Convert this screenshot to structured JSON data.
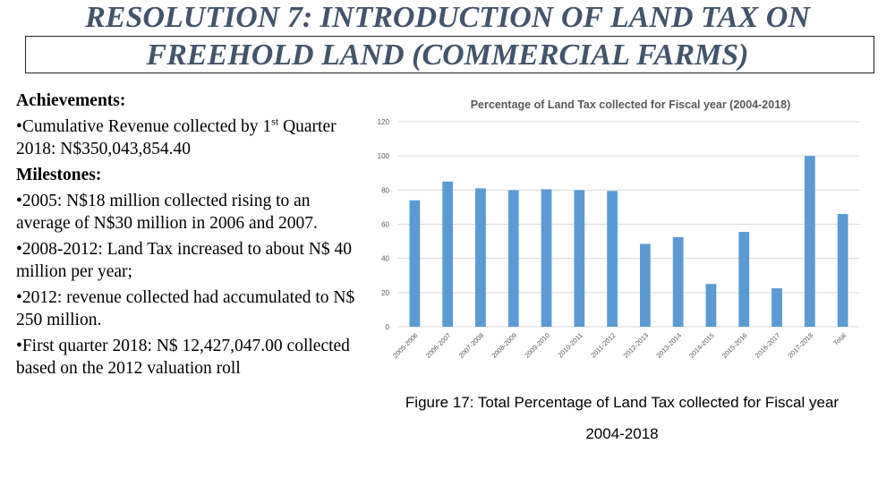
{
  "header": {
    "title_line1": "RESOLUTION 7: INTRODUCTION OF LAND TAX ON",
    "title_line2": "FREEHOLD LAND (COMMERCIAL FARMS)"
  },
  "left": {
    "achievements_heading": "Achievements:",
    "achievement_1_pre": "•Cumulative Revenue collected by 1",
    "achievement_1_sup": "st",
    "achievement_1_post": " Quarter 2018: N$350,043,854.40",
    "milestones_heading": "Milestones:",
    "milestones": [
      "•2005: N$18 million collected rising to  an average of N$30 million  in 2006 and 2007.",
      "•2008-2012: Land Tax increased to about N$ 40 million per year;",
      "•2012: revenue collected had accumulated to N$ 250 million.",
      "•First quarter 2018: N$ 12,427,047.00 collected based on the 2012 valuation roll"
    ]
  },
  "caption": {
    "line1": "Figure 17: Total Percentage of Land Tax collected for Fiscal year",
    "line2": "2004-2018"
  },
  "colors": {
    "title": "#44546a",
    "bar": "#5b9bd5",
    "grid": "#d9d9d9"
  },
  "chart_data": {
    "type": "bar",
    "title": "Percentage of Land Tax collected for Fiscal year (2004-2018)",
    "xlabel": "",
    "ylabel": "",
    "ylim": [
      0,
      120
    ],
    "yticks": [
      0,
      20,
      40,
      60,
      80,
      100,
      120
    ],
    "grid": true,
    "legend": "none",
    "categories": [
      "2005-2006",
      "2006-2007",
      "2007-2008",
      "2008-2009",
      "2009-2010",
      "2010-2011",
      "2011-2012",
      "2012-2013",
      "2013-2014",
      "2014-2015",
      "2015-2016",
      "2016-2017",
      "2017-2018",
      "Total"
    ],
    "values": [
      74,
      85,
      81,
      80,
      80.5,
      80,
      79.5,
      48.5,
      52.5,
      25,
      55.5,
      22.5,
      100,
      66
    ]
  }
}
